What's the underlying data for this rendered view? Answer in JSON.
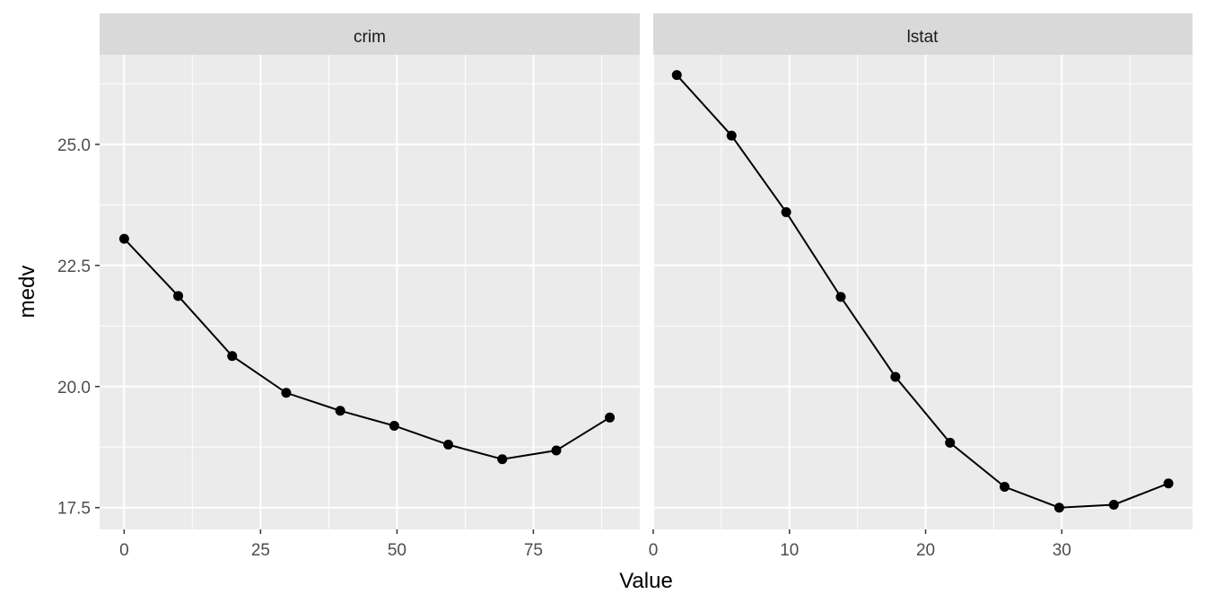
{
  "chart_data": {
    "type": "line",
    "xlabel": "Value",
    "ylabel": "medv",
    "ylim": [
      17.05,
      26.85
    ],
    "yticks": [
      17.5,
      20.0,
      22.5,
      25.0
    ],
    "ytick_labels": [
      "17.5",
      "20.0",
      "22.5",
      "25.0"
    ],
    "grid": true,
    "panels": [
      {
        "title": "crim",
        "xlim": [
          -4.5,
          94.5
        ],
        "xticks": [
          0,
          25,
          50,
          75
        ],
        "xtick_labels": [
          "0",
          "25",
          "50",
          "75"
        ],
        "x": [
          0.006,
          9.9,
          19.8,
          29.7,
          39.6,
          49.5,
          59.4,
          69.3,
          79.2,
          89.0
        ],
        "y": [
          23.05,
          21.87,
          20.63,
          19.87,
          19.5,
          19.19,
          18.8,
          18.5,
          18.68,
          19.36
        ]
      },
      {
        "title": "lstat",
        "xlim": [
          0.0,
          39.6
        ],
        "xticks": [
          0,
          10,
          20,
          30
        ],
        "xtick_labels": [
          "0",
          "10",
          "20",
          "30"
        ],
        "x": [
          1.73,
          5.75,
          9.76,
          13.77,
          17.78,
          21.79,
          25.8,
          29.81,
          33.82,
          37.83
        ],
        "y": [
          26.43,
          25.18,
          23.6,
          21.85,
          20.2,
          18.84,
          17.93,
          17.5,
          17.56,
          18.0
        ]
      }
    ]
  }
}
